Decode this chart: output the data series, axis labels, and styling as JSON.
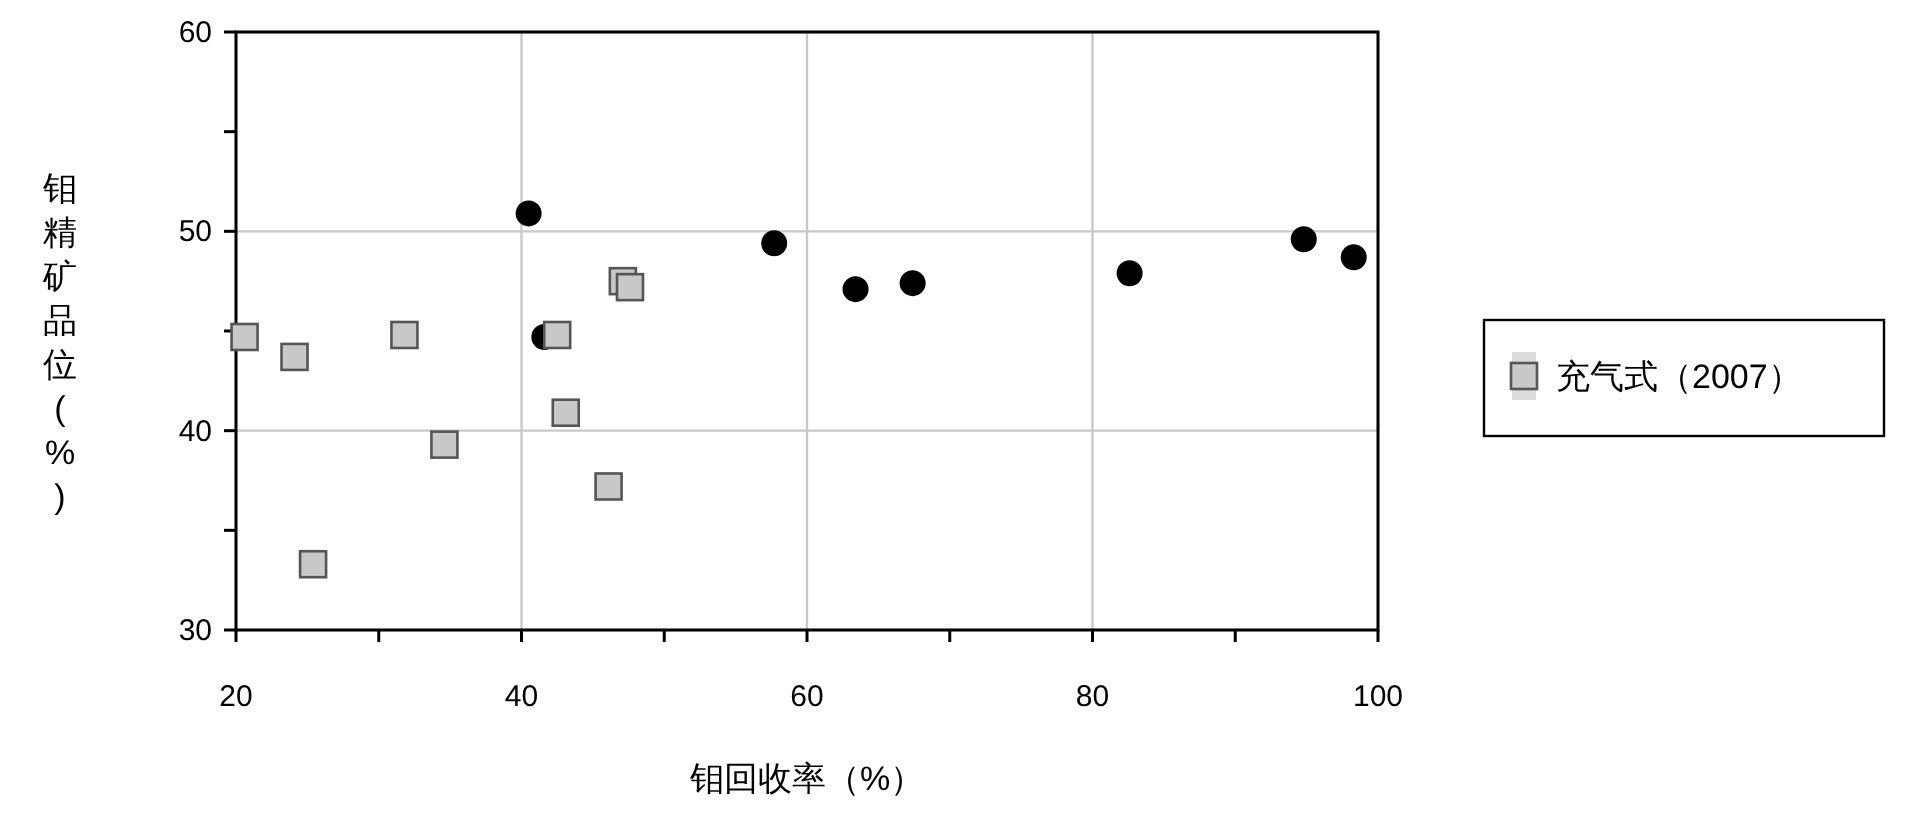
{
  "chart_data": {
    "type": "scatter",
    "xlabel": "钼回收率（%）",
    "ylabel": "钼精矿品位(%)",
    "xlim": [
      20,
      100
    ],
    "xticks": [
      20,
      {
        "value": 30,
        "label": null
      },
      40,
      {
        "value": 50,
        "label": null
      },
      60,
      {
        "value": 70,
        "label": null
      },
      80,
      {
        "value": 90,
        "label": null
      },
      100
    ],
    "ylim": [
      30,
      60
    ],
    "yticks": [
      30,
      {
        "value": 35,
        "label": null
      },
      40,
      {
        "value": 45,
        "label": null
      },
      50,
      {
        "value": 55,
        "label": null
      },
      60
    ],
    "grid": true,
    "legend": "right",
    "series": [
      {
        "color": "#000000",
        "marker": "circle",
        "x": [
          40.5,
          41.6,
          57.7,
          63.4,
          67.4,
          82.6,
          94.8,
          98.3
        ],
        "values": [
          50.9,
          44.7,
          49.4,
          47.1,
          47.4,
          47.9,
          49.6,
          48.7
        ]
      },
      {
        "name": "充气式（2007）",
        "color": "#c8c8c8",
        "marker": "square",
        "x": [
          20.6,
          24.1,
          31.8,
          34.6,
          25.4,
          42.5,
          43.1,
          46.1,
          47.1,
          47.6
        ],
        "values": [
          44.7,
          43.7,
          44.8,
          39.3,
          33.3,
          44.8,
          40.9,
          37.2,
          47.5,
          47.2
        ]
      }
    ]
  }
}
